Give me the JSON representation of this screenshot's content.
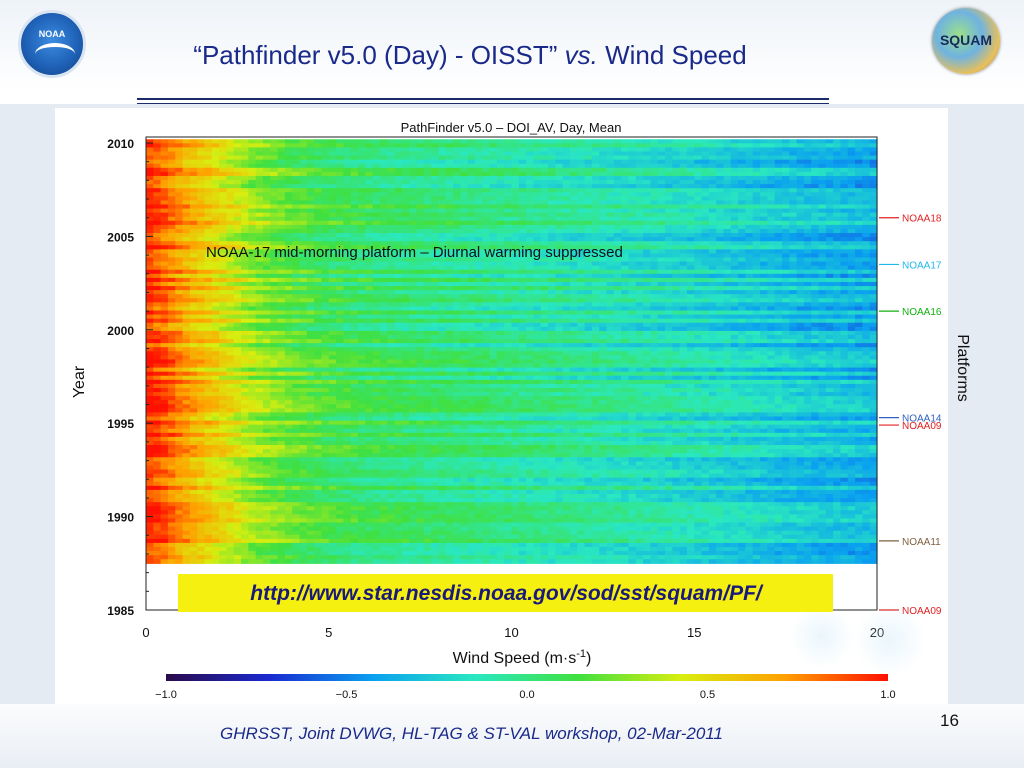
{
  "slide": {
    "title_main": "“Pathfinder v5.0 (Day) - OISST” ",
    "title_vs": "vs.",
    "title_end": " Wind Speed",
    "footer": "GHRSST, Joint DVWG, HL-TAG & ST-VAL workshop, 02-Mar-2011",
    "page_number": "16",
    "logo_left_text": "NOAA",
    "logo_right_text": "SQUAM"
  },
  "chart_data": {
    "type": "heatmap",
    "title": "PathFinder v5.0 – DOI_AV, Day, Mean",
    "xlabel": "Wind Speed (m·s⁻¹)",
    "ylabel": "Year",
    "right_label": "Platforms",
    "xlim": [
      0,
      20
    ],
    "ylim": [
      1985,
      2010
    ],
    "data_range_years": [
      1987.5,
      2010.2
    ],
    "x_ticks": [
      "0",
      "5",
      "10",
      "15",
      "20"
    ],
    "y_ticks": [
      "1985",
      "1990",
      "1995",
      "2000",
      "2005",
      "2010"
    ],
    "colorbar": {
      "range": [
        -1.0,
        1.0
      ],
      "ticks": [
        "−1.0",
        "−0.5",
        "0.0",
        "0.5",
        "1.0"
      ],
      "colors": [
        "#2a0a4a",
        "#1a2ad0",
        "#0aa0f0",
        "#2ae8c0",
        "#40e040",
        "#d8ee10",
        "#ffa000",
        "#ff1000"
      ]
    },
    "mean_profile": {
      "wind_speed": [
        0,
        0.5,
        1,
        2,
        3,
        4,
        5,
        6,
        8,
        10,
        12,
        14,
        16,
        18,
        20
      ],
      "value": [
        0.95,
        0.85,
        0.7,
        0.5,
        0.3,
        0.18,
        0.1,
        0.05,
        0.0,
        -0.05,
        -0.1,
        -0.15,
        -0.22,
        -0.3,
        -0.35
      ]
    },
    "platforms": [
      {
        "name": "NOAA18",
        "year": 2006.0,
        "color": "#e02020"
      },
      {
        "name": "NOAA17",
        "year": 2003.5,
        "color": "#20b8e8"
      },
      {
        "name": "NOAA16",
        "year": 2001.0,
        "color": "#10b010"
      },
      {
        "name": "NOAA14",
        "year": 1995.3,
        "color": "#3060c0"
      },
      {
        "name": "NOAA09",
        "year": 1994.9,
        "color": "#e02020"
      },
      {
        "name": "NOAA11",
        "year": 1988.7,
        "color": "#806040"
      },
      {
        "name": "NOAA09",
        "year": 1985.0,
        "color": "#e02020"
      }
    ],
    "annotations": {
      "note": "NOAA-17 mid-morning platform – Diurnal warming suppressed",
      "url": "http://www.star.nesdis.noaa.gov/sod/sst/squam/PF/"
    }
  }
}
